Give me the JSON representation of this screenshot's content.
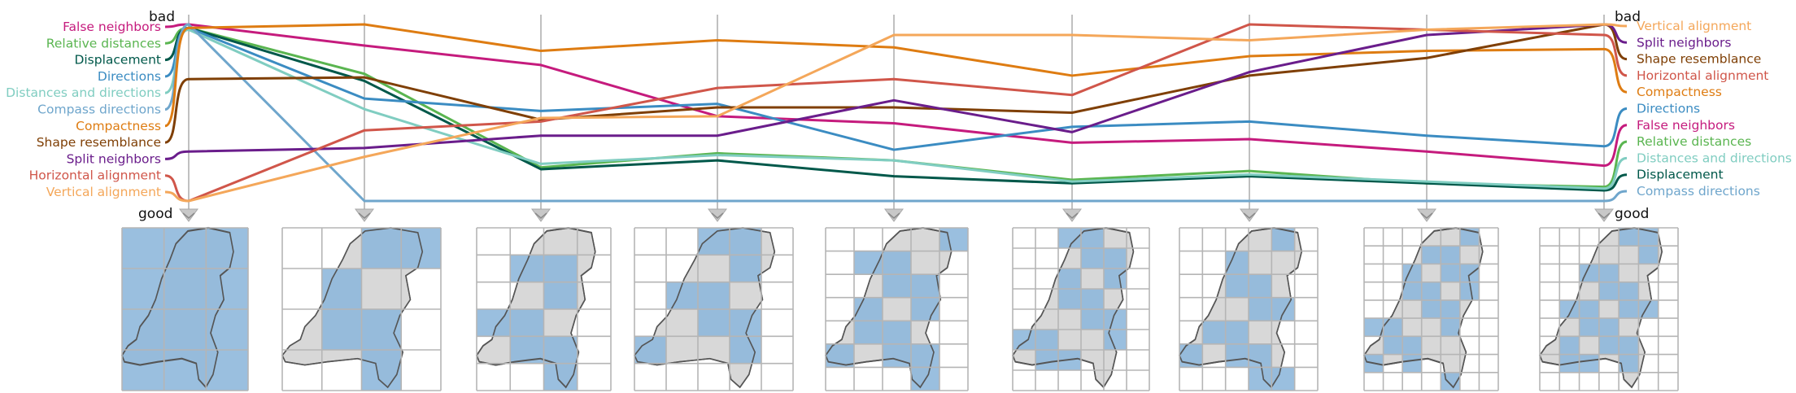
{
  "chart_data": {
    "type": "parallel-coordinates",
    "title": "",
    "n_axes": 9,
    "axis_top_label": "bad",
    "axis_bottom_label": "good",
    "y_range": [
      0,
      1
    ],
    "series": [
      {
        "name": "False neighbors",
        "color": "#c51b7d",
        "values": [
          1.0,
          0.88,
          0.77,
          0.48,
          0.44,
          0.33,
          0.35,
          0.28,
          0.2
        ],
        "left_order": 0,
        "right_order": 6
      },
      {
        "name": "Relative distances",
        "color": "#5ab550",
        "values": [
          0.98,
          0.72,
          0.19,
          0.27,
          0.23,
          0.12,
          0.17,
          0.1,
          0.08
        ],
        "left_order": 1,
        "right_order": 7
      },
      {
        "name": "Displacement",
        "color": "#00584a",
        "values": [
          0.98,
          0.68,
          0.18,
          0.23,
          0.14,
          0.1,
          0.14,
          0.1,
          0.06
        ],
        "left_order": 2,
        "right_order": 9
      },
      {
        "name": "Directions",
        "color": "#3b8cc2",
        "values": [
          0.98,
          0.58,
          0.51,
          0.55,
          0.29,
          0.42,
          0.45,
          0.37,
          0.31
        ],
        "left_order": 3,
        "right_order": 5
      },
      {
        "name": "Distances and directions",
        "color": "#80cdc1",
        "values": [
          0.97,
          0.52,
          0.21,
          0.26,
          0.23,
          0.11,
          0.15,
          0.11,
          0.07
        ],
        "left_order": 4,
        "right_order": 8
      },
      {
        "name": "Compass directions",
        "color": "#6fa6cc",
        "values": [
          1.0,
          0.0,
          0.0,
          0.0,
          0.0,
          0.0,
          0.0,
          0.0,
          0.0
        ],
        "left_order": 5,
        "right_order": 10
      },
      {
        "name": "Compactness",
        "color": "#de7c12",
        "values": [
          0.98,
          1.0,
          0.85,
          0.91,
          0.87,
          0.71,
          0.82,
          0.85,
          0.86
        ],
        "left_order": 6,
        "right_order": 4
      },
      {
        "name": "Shape resemblance",
        "color": "#7f3f05",
        "values": [
          0.69,
          0.7,
          0.46,
          0.53,
          0.53,
          0.5,
          0.71,
          0.81,
          1.0
        ],
        "left_order": 7,
        "right_order": 2
      },
      {
        "name": "Split neighbors",
        "color": "#6a1d8b",
        "values": [
          0.28,
          0.3,
          0.37,
          0.37,
          0.57,
          0.39,
          0.73,
          0.94,
          1.0
        ],
        "left_order": 8,
        "right_order": 1
      },
      {
        "name": "Horizontal alignment",
        "color": "#d0564a",
        "values": [
          0.0,
          0.4,
          0.45,
          0.64,
          0.69,
          0.6,
          1.0,
          0.97,
          0.94
        ],
        "left_order": 9,
        "right_order": 3
      },
      {
        "name": "Vertical alignment",
        "color": "#f4a75a",
        "values": [
          0.0,
          0.25,
          0.47,
          0.48,
          0.94,
          0.94,
          0.91,
          0.97,
          1.0
        ],
        "left_order": 10,
        "right_order": 0
      }
    ]
  },
  "maps": [
    {
      "cols": 3,
      "rows": 4,
      "fill": "full",
      "outside_fill": true
    },
    {
      "cols": 4,
      "rows": 4,
      "fill": "partial"
    },
    {
      "cols": 4,
      "rows": 6,
      "fill": "partial"
    },
    {
      "cols": 5,
      "rows": 6,
      "fill": "partial"
    },
    {
      "cols": 5,
      "rows": 7,
      "fill": "partial"
    },
    {
      "cols": 6,
      "rows": 8,
      "fill": "partial"
    },
    {
      "cols": 6,
      "rows": 7,
      "fill": "partial"
    },
    {
      "cols": 7,
      "rows": 9,
      "fill": "partial"
    },
    {
      "cols": 7,
      "rows": 9,
      "fill": "partial"
    }
  ],
  "colors": {
    "map_blue": "#8fb8dc",
    "map_gray": "#d8d8d8",
    "outline": "#555555",
    "grid": "#b5b5b5",
    "axis": "#b0b0b0"
  }
}
